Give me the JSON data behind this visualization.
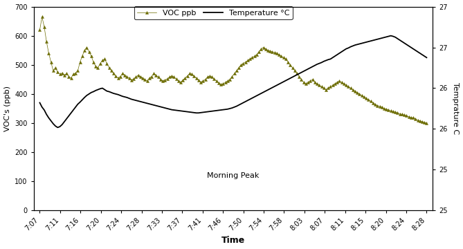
{
  "xlabel": "Time",
  "ylabel_left": "VOC's (ppb)",
  "ylabel_right": "Temprature C",
  "annotation": "Morning Peak",
  "x_labels": [
    "7:07",
    "7:11",
    "7:16",
    "7:20",
    "7:24",
    "7:28",
    "7:33",
    "7:37",
    "7:41",
    "7:46",
    "7:50",
    "7:54",
    "7:58",
    "8:03",
    "8:07",
    "8:11",
    "8:15",
    "8:20",
    "8:24",
    "8:28"
  ],
  "ylim_left": [
    0,
    700
  ],
  "yticks_left": [
    0,
    100,
    200,
    300,
    400,
    500,
    600,
    700
  ],
  "right_tick_positions": [
    0,
    87.5,
    175,
    262.5,
    350,
    437.5,
    525,
    612.5,
    700
  ],
  "right_tick_labels": [
    "25",
    "",
    "",
    "",
    "26",
    "",
    "",
    "",
    "27"
  ],
  "right_tick_pos6": [
    0,
    140,
    280,
    420,
    560,
    700
  ],
  "right_tick_lab6": [
    "25",
    "25",
    "26",
    "26",
    "27",
    "27"
  ],
  "legend_voc": "VOC ppb",
  "legend_temp": "Temperature °C",
  "voc_color": "#6b6b00",
  "temp_color": "#000000",
  "bg_color": "#ffffff",
  "voc_data": [
    620,
    665,
    630,
    580,
    540,
    510,
    480,
    490,
    475,
    468,
    472,
    465,
    470,
    460,
    455,
    468,
    472,
    480,
    510,
    530,
    550,
    560,
    545,
    530,
    510,
    495,
    490,
    505,
    515,
    520,
    505,
    490,
    480,
    470,
    462,
    455,
    460,
    470,
    465,
    460,
    455,
    448,
    452,
    458,
    465,
    460,
    455,
    450,
    445,
    455,
    460,
    470,
    465,
    458,
    450,
    445,
    448,
    452,
    458,
    462,
    458,
    452,
    445,
    440,
    448,
    455,
    462,
    470,
    468,
    462,
    455,
    448,
    440,
    445,
    450,
    458,
    462,
    458,
    452,
    445,
    438,
    432,
    435,
    440,
    445,
    450,
    460,
    470,
    480,
    490,
    500,
    505,
    510,
    515,
    520,
    525,
    530,
    535,
    545,
    555,
    560,
    555,
    550,
    548,
    545,
    542,
    540,
    535,
    530,
    525,
    520,
    510,
    500,
    490,
    480,
    470,
    460,
    450,
    440,
    435,
    440,
    445,
    450,
    440,
    435,
    430,
    425,
    420,
    415,
    420,
    425,
    430,
    435,
    440,
    445,
    440,
    435,
    430,
    425,
    420,
    415,
    410,
    405,
    400,
    395,
    390,
    385,
    380,
    375,
    370,
    365,
    360,
    358,
    355,
    350,
    348,
    345,
    342,
    340,
    338,
    335,
    332,
    330,
    328,
    325,
    322,
    320,
    318,
    315,
    310,
    308,
    305,
    302,
    300
  ],
  "temp_data": [
    370,
    355,
    345,
    330,
    318,
    308,
    298,
    290,
    285,
    288,
    295,
    305,
    315,
    325,
    335,
    345,
    355,
    365,
    372,
    380,
    388,
    395,
    400,
    405,
    408,
    412,
    415,
    418,
    420,
    415,
    410,
    408,
    405,
    402,
    400,
    398,
    395,
    392,
    390,
    388,
    385,
    382,
    380,
    378,
    376,
    374,
    372,
    370,
    368,
    366,
    364,
    362,
    360,
    358,
    356,
    354,
    352,
    350,
    348,
    346,
    345,
    344,
    343,
    342,
    341,
    340,
    339,
    338,
    337,
    336,
    335,
    335,
    336,
    337,
    338,
    339,
    340,
    341,
    342,
    343,
    344,
    345,
    346,
    347,
    348,
    350,
    352,
    355,
    358,
    362,
    366,
    370,
    374,
    378,
    382,
    386,
    390,
    394,
    398,
    402,
    406,
    410,
    414,
    418,
    422,
    426,
    430,
    434,
    438,
    442,
    446,
    450,
    454,
    458,
    462,
    466,
    470,
    474,
    478,
    482,
    486,
    490,
    494,
    498,
    502,
    505,
    508,
    512,
    515,
    518,
    520,
    525,
    530,
    535,
    540,
    545,
    550,
    555,
    558,
    562,
    565,
    568,
    570,
    572,
    574,
    576,
    578,
    580,
    582,
    584,
    586,
    588,
    590,
    592,
    594,
    596,
    598,
    600,
    598,
    595,
    590,
    585,
    580,
    575,
    570,
    565,
    560,
    555,
    550,
    545,
    540,
    535,
    530,
    525
  ]
}
